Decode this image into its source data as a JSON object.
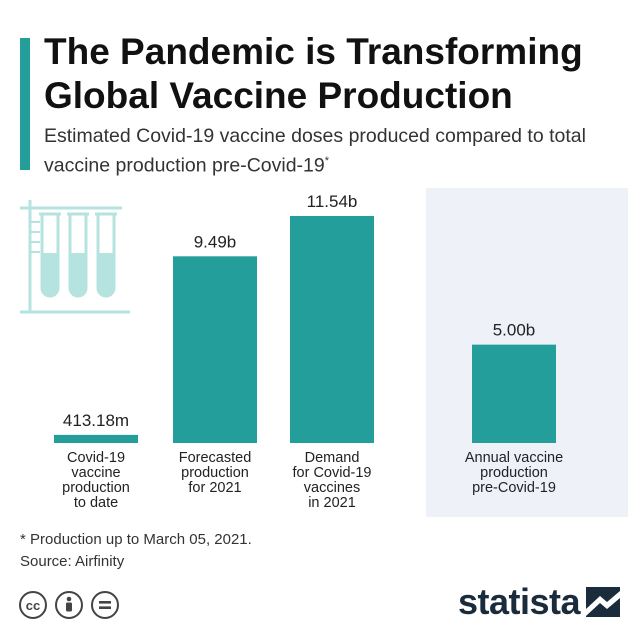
{
  "title": "The Pandemic is Transforming Global Vaccine Production",
  "subtitle": "Estimated Covid-19 vaccine doses produced compared to total vaccine production pre-Covid-19",
  "subtitle_marker": "*",
  "footnote": "* Production up to March 05, 2021.",
  "source": "Source: Airfinity",
  "brand": "statista",
  "colors": {
    "accent": "#239e9a",
    "bar": "#239e9a",
    "highlight_bg": "#eef1f8",
    "tube_outline": "#b5e3e0",
    "tube_fill": "#b5e3e0"
  },
  "icons": [
    "test-tubes-icon",
    "cc-icon",
    "attribution-icon",
    "no-derivatives-icon",
    "statista-logo-icon"
  ],
  "chart_data": {
    "type": "bar",
    "title": "The Pandemic is Transforming Global Vaccine Production",
    "unit": "billion doses",
    "categories": [
      [
        "Covid-19",
        "vaccine",
        "production",
        "to date"
      ],
      [
        "Forecasted",
        "production",
        "for 2021"
      ],
      [
        "Demand",
        "for Covid-19",
        "vaccines",
        "in 2021"
      ],
      [
        "Annual vaccine",
        "production",
        "pre-Covid-19"
      ]
    ],
    "values": [
      0.41318,
      9.49,
      11.54,
      5.0
    ],
    "value_labels": [
      "413.18m",
      "9.49b",
      "11.54b",
      "5.00b"
    ],
    "highlighted_category": 3,
    "ylim": [
      0,
      11.54
    ],
    "grid": false,
    "legend": "none",
    "xlabel": "",
    "ylabel": ""
  }
}
